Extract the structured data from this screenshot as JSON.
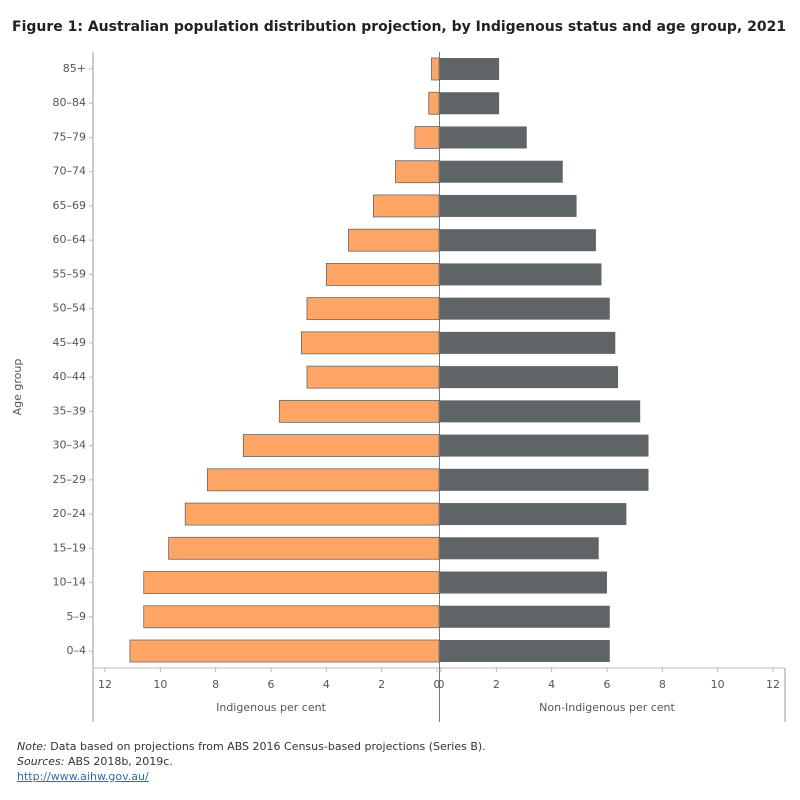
{
  "chart_data": {
    "type": "pyramid",
    "title": "Figure 1: Australian population distribution projection, by Indigenous status and age group, 2021",
    "y_label": "Age group",
    "categories": [
      "85+",
      "80–84",
      "75–79",
      "70–74",
      "65–69",
      "60–64",
      "55–59",
      "50–54",
      "45–49",
      "40–44",
      "35–39",
      "30–34",
      "25–29",
      "20–24",
      "15–19",
      "10–14",
      "5–9",
      "0–4"
    ],
    "series": [
      {
        "name": "Indigenous per cent",
        "color": "#ffa666",
        "values": [
          0.2,
          0.3,
          0.8,
          1.5,
          2.3,
          3.2,
          4.0,
          4.7,
          4.9,
          4.7,
          5.7,
          7.0,
          8.3,
          9.1,
          9.7,
          10.6,
          10.6,
          11.1
        ]
      },
      {
        "name": "Non-Indigenous per cent",
        "color": "#5f6466",
        "values": [
          2.1,
          2.1,
          3.1,
          4.4,
          4.9,
          5.6,
          5.8,
          6.1,
          6.3,
          6.4,
          7.2,
          7.5,
          7.5,
          6.7,
          5.7,
          6.0,
          6.1,
          6.1
        ]
      }
    ],
    "xlim": [
      0,
      12
    ],
    "xticks": [
      0,
      2,
      4,
      6,
      8,
      10,
      12
    ]
  },
  "notes": {
    "note_label": "Note:",
    "note_text": "Data based on projections from ABS 2016 Census-based projections (Series B).",
    "sources_label": "Sources:",
    "sources_text": "ABS 2018b, 2019c.",
    "link": "http://www.aihw.gov.au/"
  }
}
